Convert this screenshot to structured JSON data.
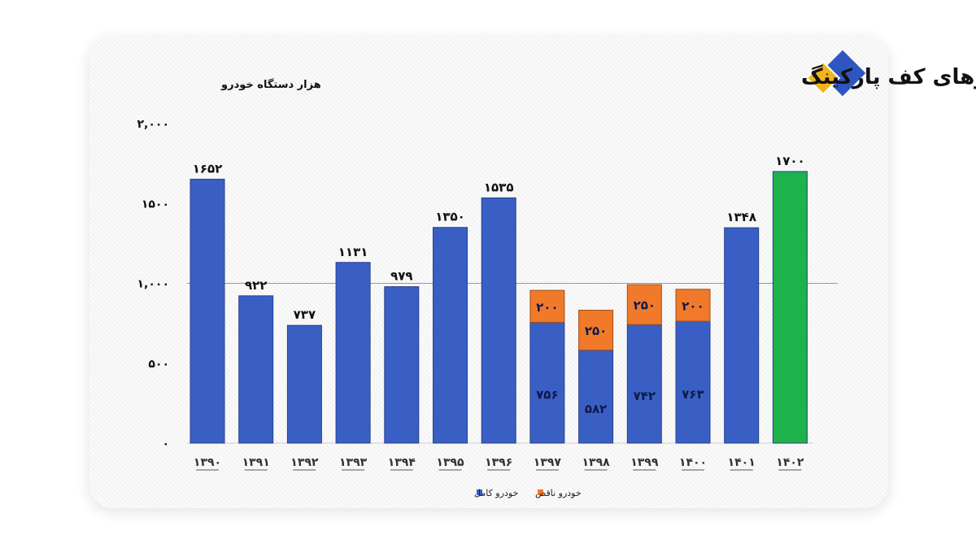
{
  "chart_data": {
    "type": "bar",
    "stacked": true,
    "title": "مقایسه خودروهای کف پارکینگ",
    "ylabel": "هزار دستگاه خودرو",
    "xlabel": "",
    "ylim": [
      0,
      2000
    ],
    "yticks": [
      0,
      500,
      1000,
      1500,
      2000
    ],
    "ytick_labels": [
      "۰",
      "۵۰۰",
      "۱,۰۰۰",
      "۱۵۰۰",
      "۲,۰۰۰"
    ],
    "gridline_at": 1000,
    "categories": [
      "۱۳۹۰",
      "۱۳۹۱",
      "۱۳۹۲",
      "۱۳۹۳",
      "۱۳۹۴",
      "۱۳۹۵",
      "۱۳۹۶",
      "۱۳۹۷",
      "۱۳۹۸",
      "۱۳۹۹",
      "۱۴۰۰",
      "۱۴۰۱",
      "۱۴۰۲"
    ],
    "series": [
      {
        "name": "خودرو کامل",
        "color": "#3a5fc4",
        "values": [
          1652,
          922,
          737,
          1131,
          979,
          1350,
          1535,
          756,
          582,
          742,
          763,
          1348,
          1700
        ],
        "labels": [
          "۱۶۵۲",
          "۹۲۲",
          "۷۳۷",
          "۱۱۳۱",
          "۹۷۹",
          "۱۳۵۰",
          "۱۵۳۵",
          "۷۵۶",
          "۵۸۲",
          "۷۴۲",
          "۷۶۳",
          "۱۳۴۸",
          "۱۷۰۰"
        ]
      },
      {
        "name": "خودرو ناقص",
        "color": "#f07a2a",
        "values": [
          0,
          0,
          0,
          0,
          0,
          0,
          0,
          200,
          250,
          250,
          200,
          0,
          0
        ],
        "labels": [
          "",
          "",
          "",
          "",
          "",
          "",
          "",
          "۲۰۰",
          "۲۵۰",
          "۲۵۰",
          "۲۰۰",
          "",
          ""
        ]
      }
    ],
    "highlight": {
      "index": 12,
      "color": "#1db34a"
    },
    "legend_position": "bottom-center"
  }
}
